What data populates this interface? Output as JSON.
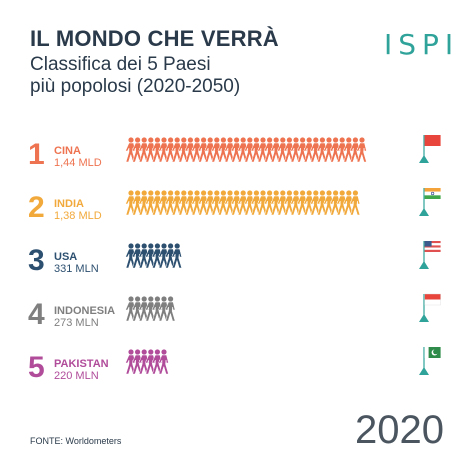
{
  "header": {
    "title": "IL MONDO CHE VERRÀ",
    "subtitle_line1": "Classifica dei 5 Paesi",
    "subtitle_line2": "più popolosi (2020-2050)",
    "logo": "ISPI"
  },
  "footer": {
    "source": "FONTE: Worldometers",
    "year": "2020"
  },
  "chart_data": {
    "type": "bar",
    "title": "IL MONDO CHE VERRÀ",
    "subtitle": "Classifica dei 5 Paesi più popolosi (2020-2050)",
    "year": "2020",
    "categories": [
      "CINA",
      "INDIA",
      "USA",
      "INDONESIA",
      "PAKISTAN"
    ],
    "labels": [
      "1,44 MLD",
      "1,38 MLD",
      "331 MLN",
      "273 MLN",
      "220 MLN"
    ],
    "values_millions": [
      1440,
      1380,
      331,
      273,
      220
    ],
    "rows": [
      {
        "rank": "1",
        "name": "CINA",
        "pop": "1,44 MLD",
        "value": 1440,
        "color": "#ee7350",
        "flag": "china-flag-icon",
        "flag_colors": [
          "#e8453c"
        ]
      },
      {
        "rank": "2",
        "name": "INDIA",
        "pop": "1,38 MLD",
        "value": 1380,
        "color": "#f2a93b",
        "flag": "india-flag-icon",
        "flag_colors": [
          "#f4a23a",
          "#ffffff",
          "#3fa64a"
        ]
      },
      {
        "rank": "3",
        "name": "USA",
        "pop": "331 MLN",
        "value": 331,
        "color": "#2d5070",
        "flag": "usa-flag-icon",
        "flag_colors": [
          "#e05050",
          "#ffffff",
          "#3b5b8c"
        ]
      },
      {
        "rank": "4",
        "name": "INDONESIA",
        "pop": "273 MLN",
        "value": 273,
        "color": "#7f7f7f",
        "flag": "indonesia-flag-icon",
        "flag_colors": [
          "#e8453c",
          "#ffffff"
        ]
      },
      {
        "rank": "5",
        "name": "PAKISTAN",
        "pop": "220 MLN",
        "value": 220,
        "color": "#b04c9a",
        "flag": "pakistan-flag-icon",
        "flag_colors": [
          "#2e8b4a",
          "#ffffff"
        ]
      }
    ],
    "pole_color": "#2fa39a",
    "unit_per_figure_millions": 40
  }
}
